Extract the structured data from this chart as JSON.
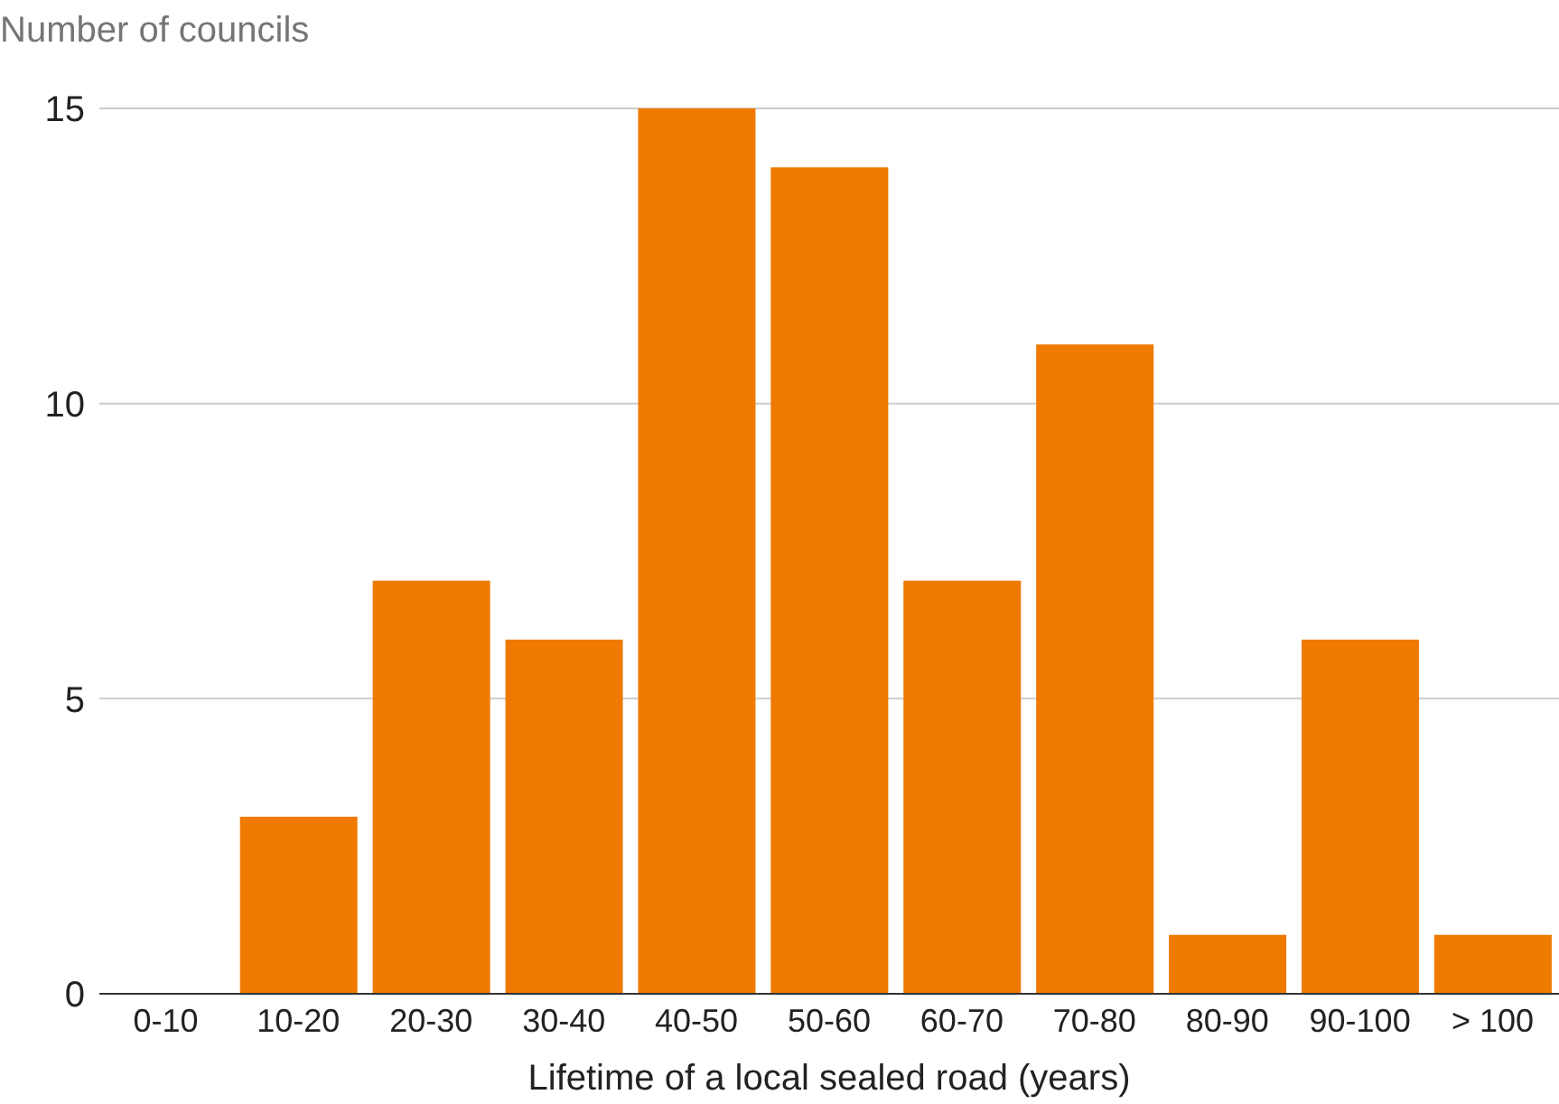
{
  "chart_data": {
    "type": "bar",
    "ylabel": "Number of councils",
    "xlabel": "Lifetime of a local sealed road (years)",
    "categories": [
      "0-10",
      "10-20",
      "20-30",
      "30-40",
      "40-50",
      "50-60",
      "60-70",
      "70-80",
      "80-90",
      "90-100",
      "> 100"
    ],
    "values": [
      0,
      3,
      7,
      6,
      15,
      14,
      7,
      11,
      1,
      6,
      1
    ],
    "color": "#ef7a00",
    "ylim": [
      0,
      15
    ],
    "yticks": [
      0,
      5,
      10,
      15
    ],
    "grid": "y",
    "legend": false
  }
}
